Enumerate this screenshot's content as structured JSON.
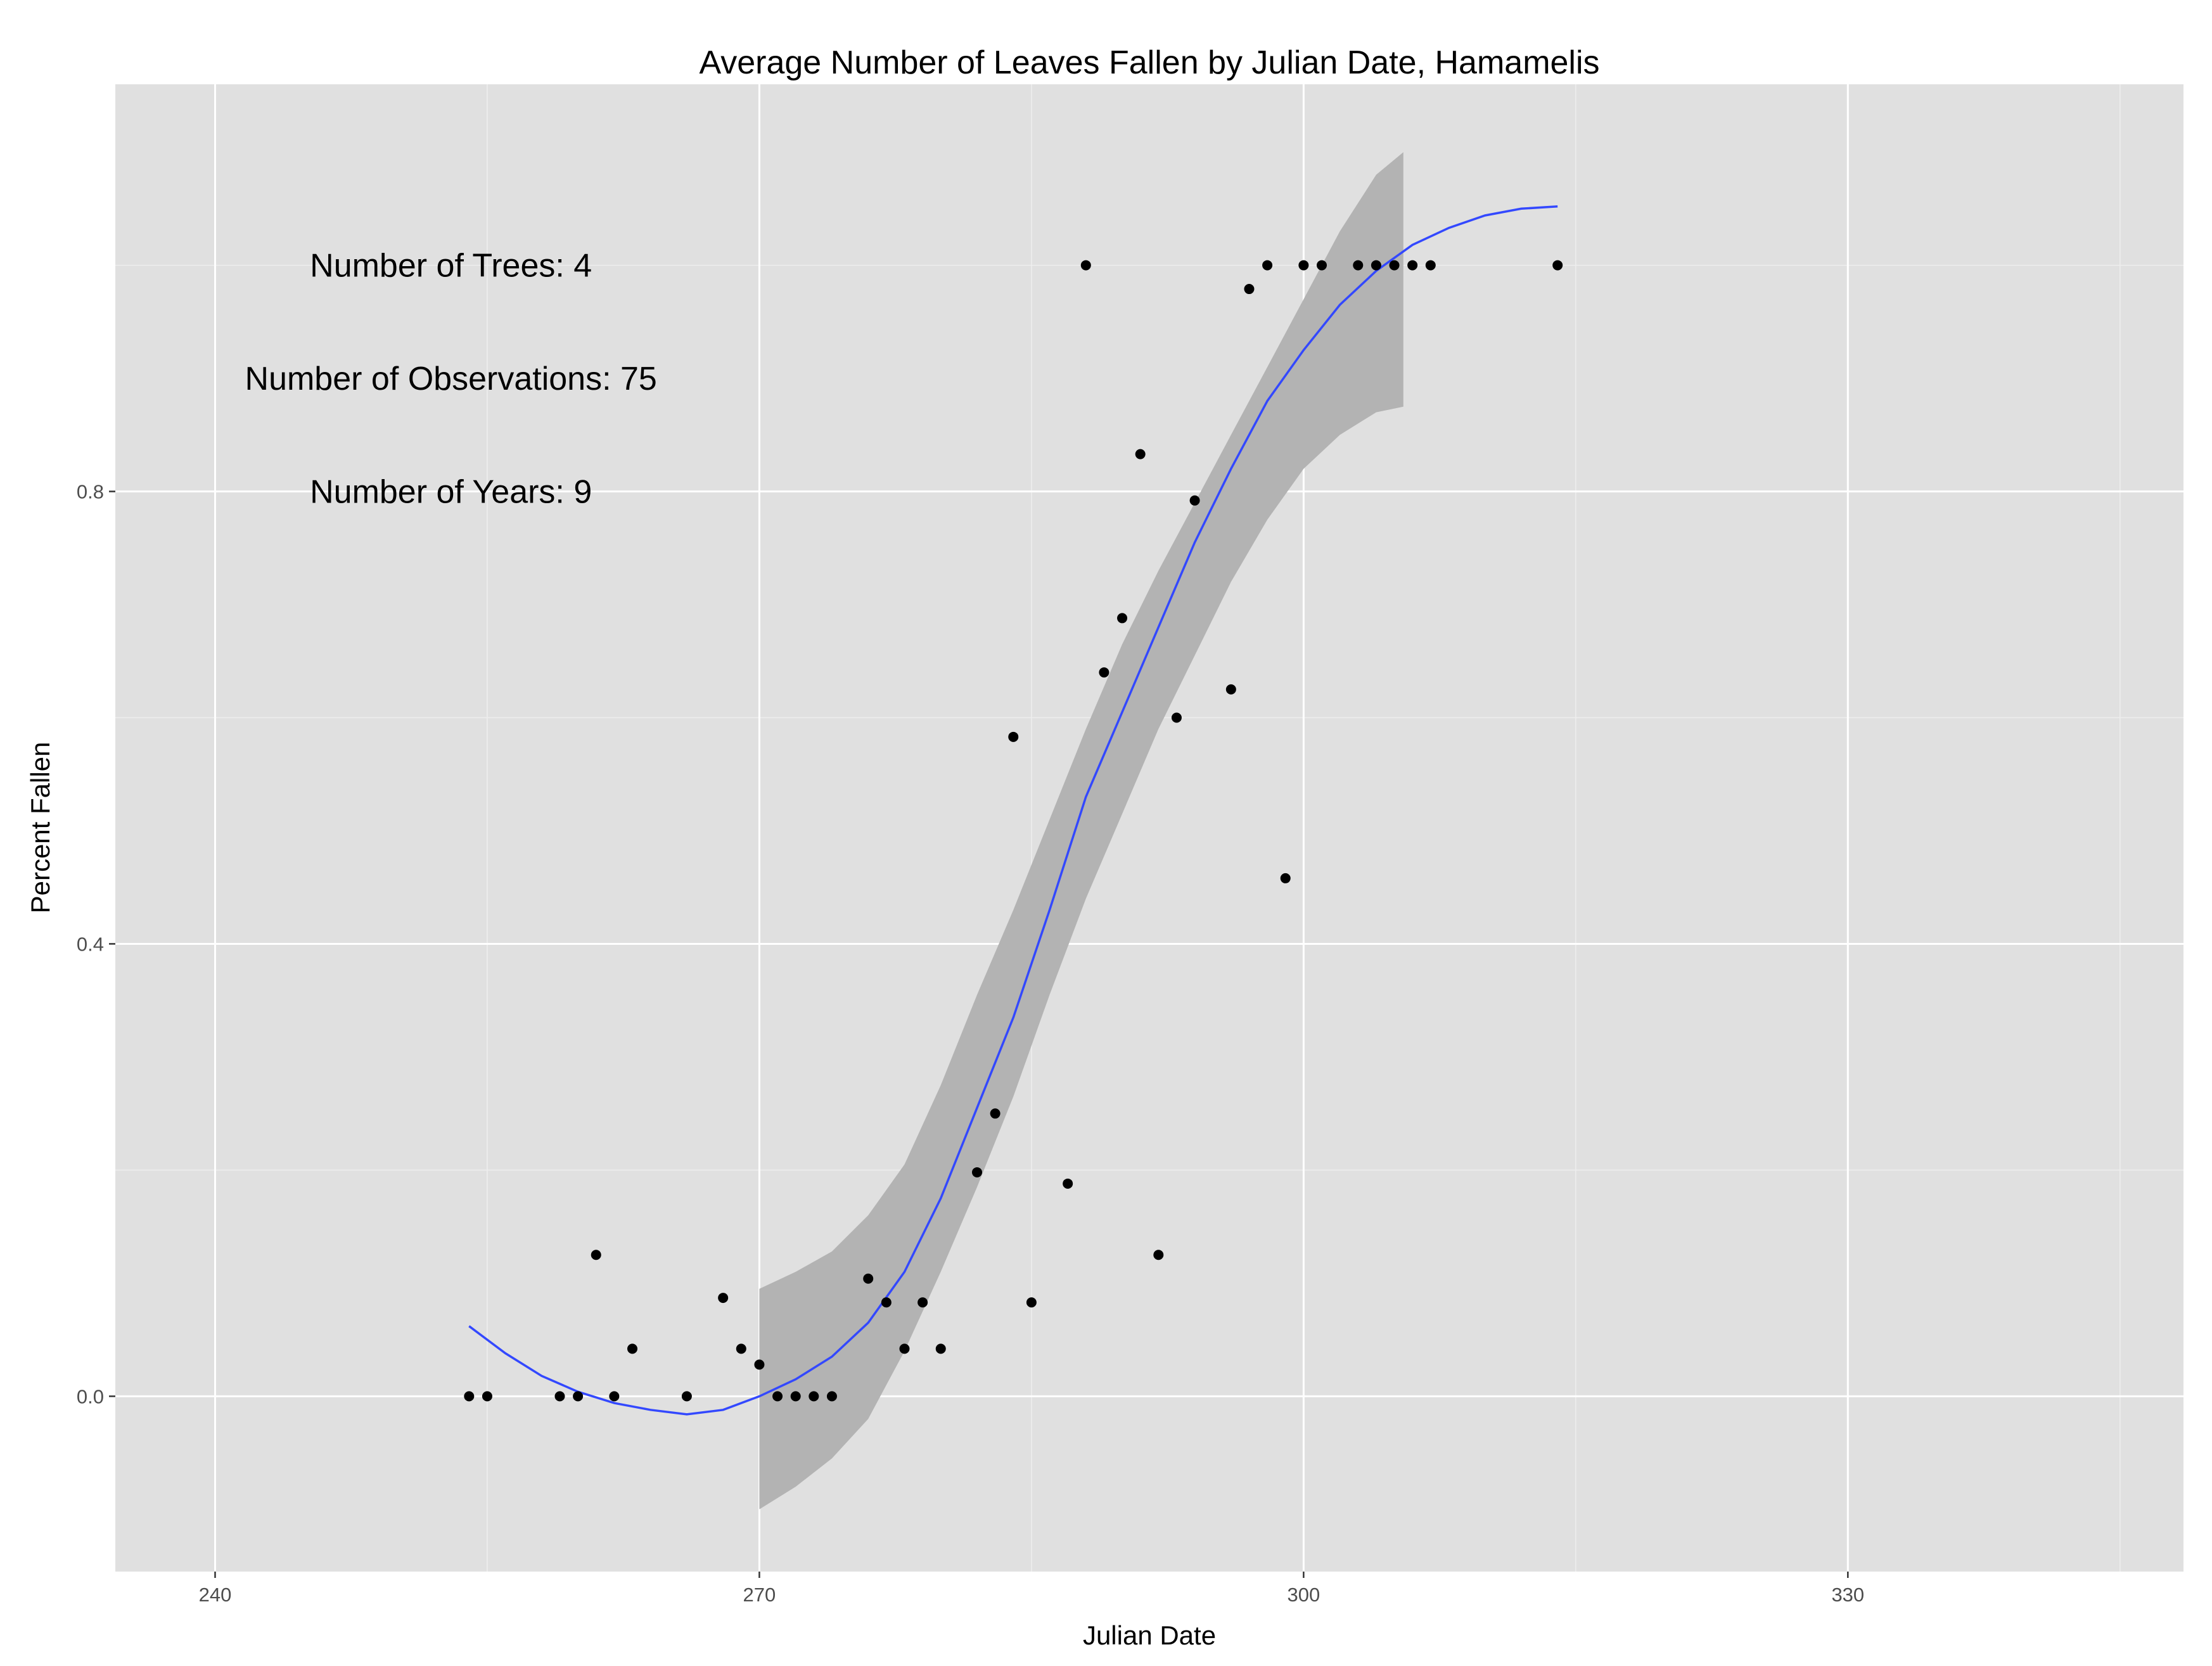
{
  "chart_data": {
    "type": "scatter",
    "title": "Average Number of Leaves Fallen by Julian Date, Hamamelis",
    "xlabel": "Julian Date",
    "ylabel": "Percent Fallen",
    "xlim": [
      234.5,
      348.5
    ],
    "ylim": [
      -0.155,
      1.16
    ],
    "x_ticks": [
      240,
      270,
      300,
      330
    ],
    "x_tick_labels": [
      "240",
      "270",
      "300",
      "330"
    ],
    "y_ticks": [
      0.0,
      0.4,
      0.8
    ],
    "y_tick_labels": [
      "0.0",
      "0.4",
      "0.8"
    ],
    "grid": true,
    "annotations": [
      {
        "text": "Number of Trees: 4",
        "x": 253,
        "y": 1.0
      },
      {
        "text": "Number of Observations: 75",
        "x": 253,
        "y": 0.9
      },
      {
        "text": "Number of Years: 9",
        "x": 253,
        "y": 0.8
      }
    ],
    "points": {
      "x": [
        254,
        255,
        259,
        260,
        261,
        262,
        263,
        266,
        268,
        269,
        270,
        271,
        272,
        273,
        274,
        276,
        277,
        278,
        279,
        280,
        282,
        283,
        284,
        285,
        287,
        288,
        289,
        290,
        291,
        292,
        293,
        294,
        296,
        297,
        298,
        299,
        300,
        301,
        303,
        304,
        305,
        306,
        307,
        314
      ],
      "y": [
        0.0,
        0.0,
        0.0,
        0.0,
        0.125,
        0.0,
        0.042,
        0.0,
        0.087,
        0.042,
        0.028,
        0.0,
        0.0,
        0.0,
        0.0,
        0.104,
        0.083,
        0.042,
        0.083,
        0.042,
        0.198,
        0.25,
        0.583,
        0.083,
        0.188,
        1.0,
        0.64,
        0.688,
        0.833,
        0.125,
        0.6,
        0.792,
        0.625,
        0.979,
        1.0,
        0.458,
        1.0,
        1.0,
        1.0,
        1.0,
        1.0,
        1.0,
        1.0,
        1.0
      ]
    },
    "smooth": {
      "x": [
        254,
        256,
        258,
        260,
        262,
        264,
        266,
        268,
        270,
        272,
        274,
        276,
        278,
        280,
        282,
        284,
        286,
        288,
        290,
        292,
        294,
        296,
        298,
        300,
        302,
        304,
        306,
        308,
        310,
        312,
        314
      ],
      "y": [
        0.062,
        0.038,
        0.018,
        0.004,
        -0.006,
        -0.012,
        -0.016,
        -0.012,
        0.0,
        0.015,
        0.035,
        0.065,
        0.11,
        0.175,
        0.255,
        0.335,
        0.43,
        0.53,
        0.605,
        0.68,
        0.755,
        0.82,
        0.88,
        0.925,
        0.965,
        0.995,
        1.018,
        1.033,
        1.044,
        1.05,
        1.052
      ]
    },
    "band": {
      "x": [
        270,
        272,
        274,
        276,
        278,
        280,
        282,
        284,
        286,
        288,
        290,
        292,
        294,
        296,
        298,
        300,
        302,
        304,
        305.5
      ],
      "upper": [
        0.095,
        0.11,
        0.128,
        0.16,
        0.205,
        0.275,
        0.355,
        0.43,
        0.51,
        0.59,
        0.665,
        0.73,
        0.79,
        0.85,
        0.91,
        0.97,
        1.03,
        1.08,
        1.1
      ],
      "lower": [
        -0.1,
        -0.08,
        -0.055,
        -0.02,
        0.04,
        0.11,
        0.185,
        0.265,
        0.355,
        0.44,
        0.515,
        0.59,
        0.655,
        0.72,
        0.775,
        0.82,
        0.85,
        0.87,
        0.875
      ]
    },
    "colors": {
      "panel": "#e0e0e0",
      "grid_major": "#ffffff",
      "grid_minor": "#eeeeee",
      "points": "#000000",
      "smooth": "#3348ff",
      "band": "#b3b3b3"
    }
  }
}
